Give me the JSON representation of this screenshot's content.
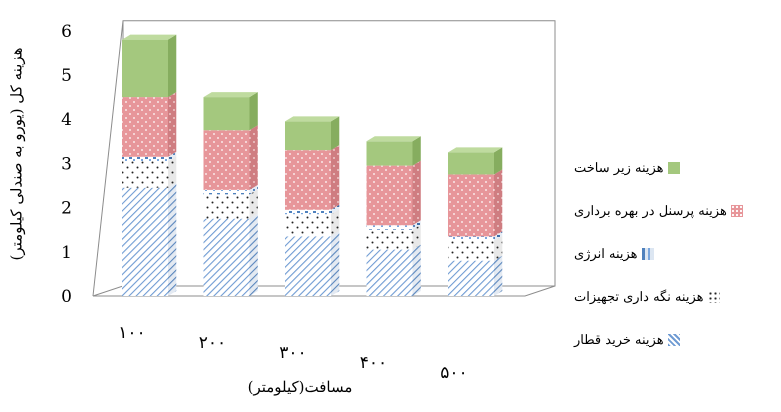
{
  "chart_data": {
    "type": "bar",
    "stacked": true,
    "three_d": true,
    "title": "",
    "xlabel": "مسافت(کیلومتر)",
    "ylabel": "هزینه کل (یورو به صندلی کیلومتر)",
    "categories": [
      "۱۰۰",
      "۲۰۰",
      "۳۰۰",
      "۴۰۰",
      "۵۰۰"
    ],
    "y_ticks": [
      "0",
      "1",
      "2",
      "3",
      "4",
      "5",
      "6"
    ],
    "ylim": [
      0,
      6
    ],
    "grid": false,
    "legend_position": "right",
    "series": [
      {
        "name": "هزینه خرید قطار",
        "values": [
          2.45,
          1.75,
          1.35,
          1.05,
          0.8
        ],
        "color": "#7aa6dd",
        "pattern": "diagonal-hatch"
      },
      {
        "name": "هزینه نگه داری تجهیزات",
        "values": [
          0.6,
          0.55,
          0.5,
          0.45,
          0.45
        ],
        "color": "#ffffff",
        "pattern": "dots"
      },
      {
        "name": "هزینه انرژی",
        "values": [
          0.1,
          0.1,
          0.1,
          0.1,
          0.1
        ],
        "color": "#4f81bd",
        "pattern": "sparse-marks"
      },
      {
        "name": "هزینه پرسنل در بهره برداری",
        "values": [
          1.35,
          1.35,
          1.35,
          1.35,
          1.4
        ],
        "color": "#e7969a",
        "pattern": "dots"
      },
      {
        "name": "هزینه زیر ساخت",
        "values": [
          1.3,
          0.75,
          0.65,
          0.55,
          0.5
        ],
        "color": "#a4c87e",
        "pattern": "solid"
      }
    ]
  }
}
